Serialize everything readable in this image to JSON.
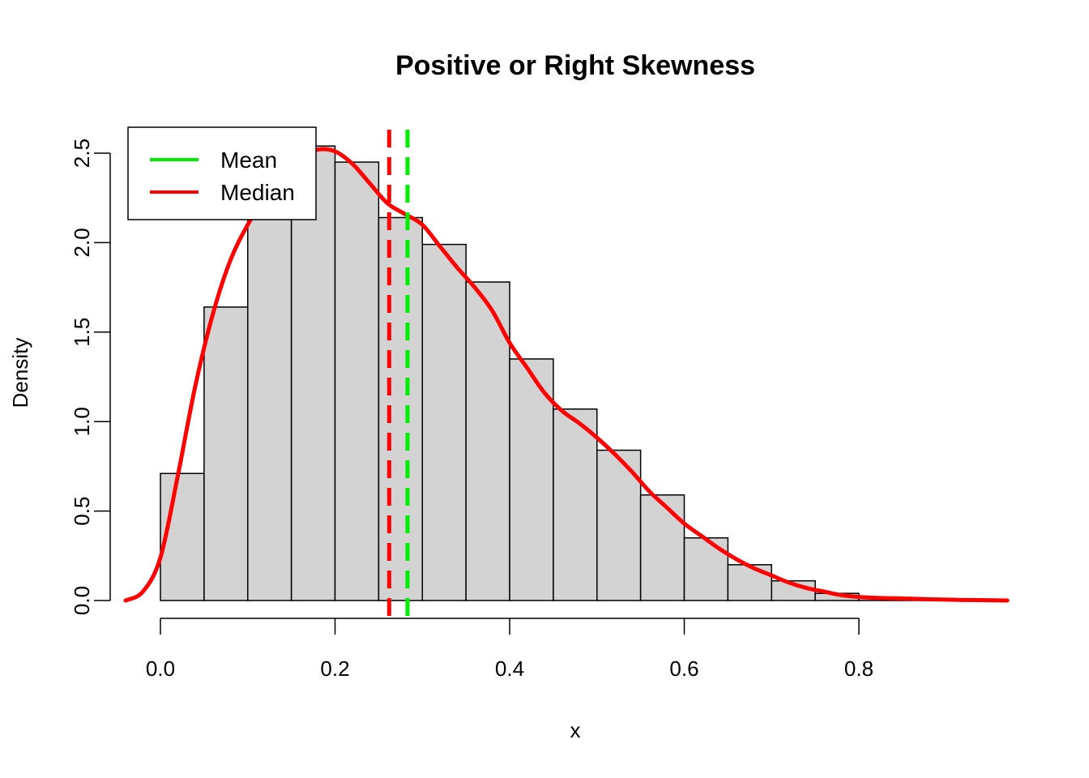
{
  "chart_data": {
    "type": "histogram",
    "title": "Positive or Right Skewness",
    "xlabel": "x",
    "ylabel": "Density",
    "xlim": [
      -0.04,
      0.97
    ],
    "ylim": [
      0,
      2.63
    ],
    "x_ticks": [
      0.0,
      0.2,
      0.4,
      0.6,
      0.8
    ],
    "x_tick_labels": [
      "0.0",
      "0.2",
      "0.4",
      "0.6",
      "0.8"
    ],
    "y_ticks": [
      0.0,
      0.5,
      1.0,
      1.5,
      2.0,
      2.5
    ],
    "y_tick_labels": [
      "0.0",
      "0.5",
      "1.0",
      "1.5",
      "2.0",
      "2.5"
    ],
    "bin_width": 0.05,
    "bin_starts": [
      0.0,
      0.05,
      0.1,
      0.15,
      0.2,
      0.25,
      0.3,
      0.35,
      0.4,
      0.45,
      0.5,
      0.55,
      0.6,
      0.65,
      0.7,
      0.75,
      0.8,
      0.85,
      0.9,
      0.95
    ],
    "densities": [
      0.71,
      1.64,
      2.13,
      2.54,
      2.45,
      2.14,
      1.99,
      1.78,
      1.35,
      1.07,
      0.84,
      0.59,
      0.35,
      0.2,
      0.11,
      0.04,
      0.02,
      0.01,
      0.0,
      0.0
    ],
    "bar_fill": "#d3d3d3",
    "density_curve": {
      "color": "#ff0000",
      "x": [
        -0.04,
        -0.02,
        0.0,
        0.02,
        0.04,
        0.06,
        0.08,
        0.1,
        0.12,
        0.14,
        0.16,
        0.18,
        0.2,
        0.22,
        0.24,
        0.26,
        0.28,
        0.3,
        0.32,
        0.34,
        0.36,
        0.38,
        0.4,
        0.42,
        0.44,
        0.46,
        0.48,
        0.5,
        0.52,
        0.54,
        0.56,
        0.58,
        0.6,
        0.62,
        0.64,
        0.66,
        0.68,
        0.7,
        0.72,
        0.74,
        0.76,
        0.78,
        0.8,
        0.82,
        0.84,
        0.86,
        0.88,
        0.9,
        0.92,
        0.94,
        0.97
      ],
      "y": [
        0.0,
        0.05,
        0.24,
        0.7,
        1.2,
        1.6,
        1.9,
        2.1,
        2.25,
        2.38,
        2.48,
        2.52,
        2.51,
        2.44,
        2.33,
        2.22,
        2.16,
        2.1,
        1.98,
        1.86,
        1.75,
        1.62,
        1.44,
        1.3,
        1.16,
        1.06,
        0.99,
        0.91,
        0.82,
        0.72,
        0.61,
        0.52,
        0.43,
        0.36,
        0.29,
        0.23,
        0.18,
        0.14,
        0.1,
        0.07,
        0.05,
        0.03,
        0.02,
        0.015,
        0.012,
        0.01,
        0.007,
        0.005,
        0.003,
        0.002,
        0.0
      ]
    },
    "vertical_lines": [
      {
        "name": "Mean",
        "x": 0.283,
        "color": "#00ee00",
        "style": "dashed"
      },
      {
        "name": "Median",
        "x": 0.262,
        "color": "#ff0000",
        "style": "dashed"
      }
    ],
    "legend": {
      "position": "top-left",
      "entries": [
        {
          "label": "Mean",
          "color": "#00ee00"
        },
        {
          "label": "Median",
          "color": "#ff0000"
        }
      ]
    }
  }
}
